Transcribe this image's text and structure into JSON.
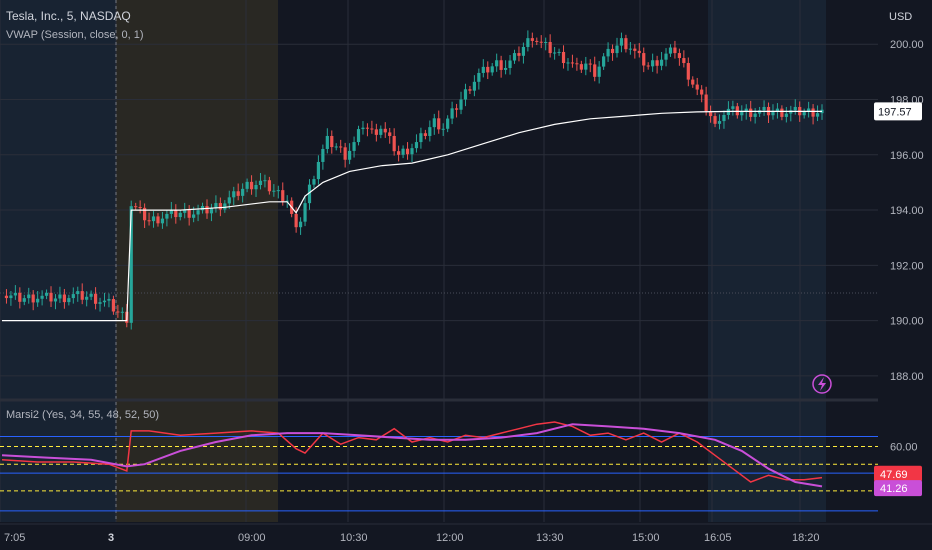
{
  "header": {
    "symbol": "Tesla, Inc., 5, NASDAQ",
    "indicator": "VWAP (Session, close, 0, 1)",
    "currency": "USD"
  },
  "oscillator": {
    "title": "Marsi2 (Yes, 34, 55, 48, 52, 50)"
  },
  "alert_icon": "lightning-icon",
  "colors": {
    "up": "#26a69a",
    "down": "#ef5350",
    "vwap": "#ffffff",
    "fast_line": "#f23645",
    "slow_line": "#c94fd8",
    "premarket_bg": "#1e2d3f",
    "session_open_bg": "#2c2a24",
    "aftermarket_bg": "#1e2d3f",
    "band_line": "#2962ff",
    "level_line": "#ffeb3b"
  },
  "chart_data": [
    {
      "type": "candlestick",
      "ylim": [
        187.2,
        201.6
      ],
      "y_ticks": [
        "200.00",
        "198.00",
        "196.00",
        "194.00",
        "192.00",
        "190.00",
        "188.00"
      ],
      "x_ticks": [
        "7:05",
        "3",
        "09:00",
        "10:30",
        "12:00",
        "13:30",
        "15:00",
        "16:05",
        "18:20"
      ],
      "dotted_reference": 191.0,
      "last_price": "197.57",
      "ohlc_close_path": [
        [
          0,
          190.9
        ],
        [
          4,
          190.8
        ],
        [
          8,
          190.85
        ],
        [
          12,
          190.8
        ],
        [
          16,
          190.9
        ],
        [
          20,
          190.85
        ],
        [
          24,
          190.6
        ],
        [
          26,
          190.3
        ],
        [
          28,
          190.1
        ],
        [
          29,
          194.2
        ],
        [
          31,
          193.9
        ],
        [
          33,
          193.6
        ],
        [
          35,
          193.7
        ],
        [
          37,
          193.8
        ],
        [
          40,
          193.9
        ],
        [
          43,
          193.9
        ],
        [
          46,
          194.0
        ],
        [
          49,
          194.2
        ],
        [
          52,
          194.5
        ],
        [
          55,
          194.9
        ],
        [
          58,
          195.0
        ],
        [
          60,
          194.8
        ],
        [
          62,
          194.6
        ],
        [
          64,
          194.4
        ],
        [
          66,
          193.2
        ],
        [
          67,
          193.7
        ],
        [
          69,
          194.8
        ],
        [
          71,
          195.8
        ],
        [
          73,
          196.5
        ],
        [
          75,
          196.3
        ],
        [
          77,
          196.0
        ],
        [
          79,
          196.4
        ],
        [
          81,
          197.1
        ],
        [
          83,
          196.8
        ],
        [
          85,
          197.0
        ],
        [
          87,
          196.5
        ],
        [
          89,
          196.0
        ],
        [
          91,
          196.2
        ],
        [
          93,
          196.4
        ],
        [
          95,
          196.8
        ],
        [
          97,
          197.2
        ],
        [
          99,
          197.0
        ],
        [
          101,
          197.5
        ],
        [
          103,
          198.0
        ],
        [
          105,
          198.5
        ],
        [
          107,
          198.9
        ],
        [
          109,
          199.1
        ],
        [
          111,
          199.3
        ],
        [
          113,
          199.2
        ],
        [
          115,
          199.5
        ],
        [
          117,
          199.9
        ],
        [
          119,
          200.3
        ],
        [
          121,
          200.0
        ],
        [
          123,
          199.8
        ],
        [
          125,
          199.6
        ],
        [
          127,
          199.4
        ],
        [
          129,
          199.1
        ],
        [
          131,
          199.3
        ],
        [
          133,
          199.0
        ],
        [
          135,
          199.5
        ],
        [
          137,
          199.8
        ],
        [
          139,
          200.1
        ],
        [
          141,
          199.9
        ],
        [
          143,
          199.5
        ],
        [
          145,
          199.2
        ],
        [
          147,
          199.4
        ],
        [
          149,
          199.6
        ],
        [
          151,
          199.8
        ],
        [
          153,
          199.2
        ],
        [
          155,
          198.6
        ],
        [
          157,
          198.0
        ],
        [
          159,
          197.4
        ],
        [
          160,
          197.0
        ],
        [
          161,
          197.4
        ],
        [
          163,
          197.6
        ],
        [
          165,
          197.55
        ],
        [
          168,
          197.55
        ],
        [
          172,
          197.55
        ],
        [
          176,
          197.55
        ],
        [
          180,
          197.55
        ],
        [
          184,
          197.57
        ]
      ],
      "vwap": [
        [
          0,
          190.0
        ],
        [
          28,
          190.0
        ],
        [
          29,
          194.0
        ],
        [
          40,
          194.0
        ],
        [
          50,
          194.1
        ],
        [
          60,
          194.3
        ],
        [
          64,
          194.3
        ],
        [
          66,
          193.9
        ],
        [
          68,
          194.5
        ],
        [
          72,
          195.0
        ],
        [
          78,
          195.4
        ],
        [
          85,
          195.6
        ],
        [
          92,
          195.7
        ],
        [
          100,
          196.0
        ],
        [
          108,
          196.4
        ],
        [
          116,
          196.8
        ],
        [
          124,
          197.1
        ],
        [
          132,
          197.3
        ],
        [
          140,
          197.4
        ],
        [
          148,
          197.5
        ],
        [
          156,
          197.55
        ],
        [
          164,
          197.57
        ],
        [
          184,
          197.57
        ]
      ]
    },
    {
      "type": "line",
      "ylim": [
        26,
        80
      ],
      "y_ticks": [
        "60.00"
      ],
      "levels": [
        64.5,
        60,
        52,
        48,
        40,
        31
      ],
      "series": [
        {
          "values_path": [
            [
              0,
              54
            ],
            [
              8,
              53
            ],
            [
              16,
              53
            ],
            [
              24,
              52
            ],
            [
              28,
              49
            ],
            [
              29,
              67
            ],
            [
              33,
              67
            ],
            [
              40,
              65
            ],
            [
              48,
              66
            ],
            [
              56,
              67
            ],
            [
              62,
              66
            ],
            [
              66,
              59
            ],
            [
              68,
              57
            ],
            [
              72,
              66
            ],
            [
              76,
              61
            ],
            [
              80,
              64
            ],
            [
              84,
              63
            ],
            [
              88,
              68
            ],
            [
              92,
              62
            ],
            [
              96,
              64
            ],
            [
              100,
              62
            ],
            [
              104,
              65
            ],
            [
              108,
              64
            ],
            [
              112,
              66
            ],
            [
              116,
              68
            ],
            [
              120,
              70
            ],
            [
              124,
              71
            ],
            [
              128,
              69
            ],
            [
              132,
              65
            ],
            [
              136,
              66
            ],
            [
              140,
              63
            ],
            [
              144,
              66
            ],
            [
              148,
              62
            ],
            [
              152,
              66
            ],
            [
              156,
              62
            ],
            [
              160,
              56
            ],
            [
              164,
              50
            ],
            [
              168,
              44
            ],
            [
              172,
              47
            ],
            [
              176,
              45
            ],
            [
              180,
              45
            ],
            [
              184,
              46
            ]
          ],
          "last_value": "47.69"
        },
        {
          "values_path": [
            [
              0,
              56
            ],
            [
              10,
              55
            ],
            [
              20,
              54
            ],
            [
              28,
              51
            ],
            [
              32,
              52
            ],
            [
              40,
              58
            ],
            [
              48,
              62
            ],
            [
              56,
              65
            ],
            [
              64,
              66
            ],
            [
              72,
              66
            ],
            [
              80,
              65
            ],
            [
              88,
              64
            ],
            [
              96,
              63
            ],
            [
              104,
              63
            ],
            [
              112,
              64
            ],
            [
              120,
              66
            ],
            [
              128,
              70
            ],
            [
              136,
              69
            ],
            [
              144,
              68
            ],
            [
              152,
              66
            ],
            [
              160,
              63
            ],
            [
              166,
              58
            ],
            [
              172,
              50
            ],
            [
              178,
              44
            ],
            [
              184,
              42
            ]
          ],
          "last_value": "41.26"
        }
      ]
    }
  ]
}
